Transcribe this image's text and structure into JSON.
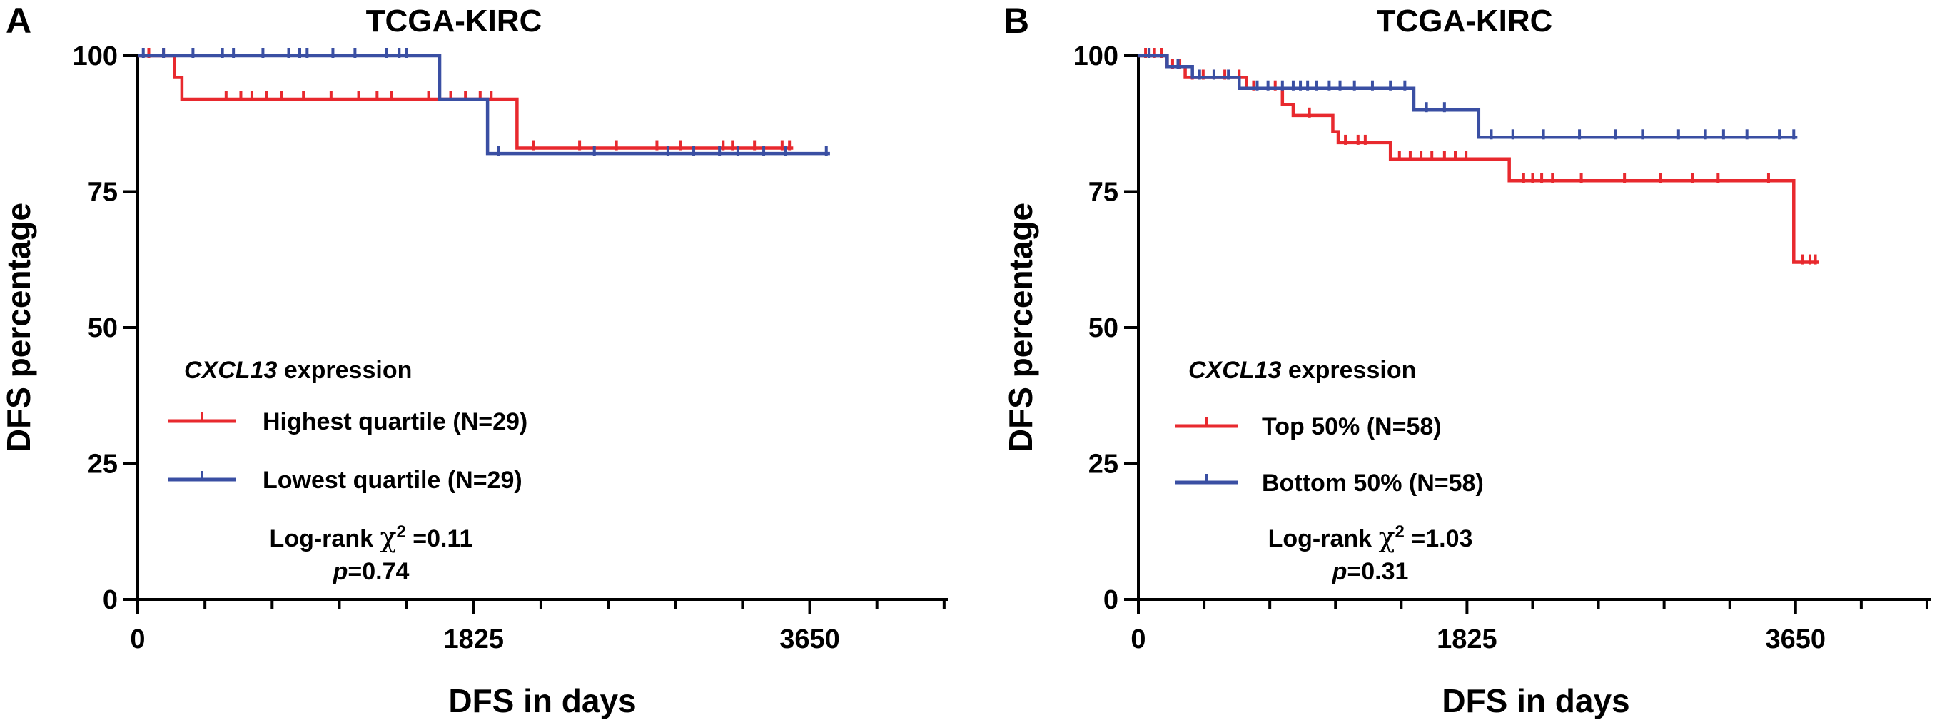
{
  "chart_data": [
    {
      "type": "line",
      "panel_label": "A",
      "title": "TCGA-KIRC",
      "xlabel": "DFS in days",
      "ylabel": "DFS percentage",
      "xlim": [
        0,
        4400
      ],
      "ylim": [
        0,
        100
      ],
      "x_ticks": [
        0,
        1825,
        3650
      ],
      "y_ticks": [
        0,
        25,
        50,
        75,
        100
      ],
      "legend_title_italic": "CXCL13",
      "legend_title_rest": " expression",
      "legend_placement": "center-left",
      "annotation": {
        "prefix": "Log-rank ",
        "chi": "χ",
        "sup": "2",
        "value": " =0.11",
        "p_label": "p",
        "p_value": "=0.74"
      },
      "series": [
        {
          "name": "Highest quartile (N=29)",
          "color": "#e8292e",
          "steps": [
            [
              0,
              100
            ],
            [
              200,
              96
            ],
            [
              240,
              92
            ],
            [
              2060,
              83
            ]
          ],
          "end_x": 3560,
          "censor_x": [
            60,
            140,
            480,
            560,
            620,
            700,
            780,
            900,
            1050,
            1200,
            1300,
            1380,
            1580,
            1700,
            1780,
            1860,
            1920,
            2150,
            2400,
            2600,
            2820,
            2950,
            3180,
            3230,
            3350,
            3500,
            3540
          ]
        },
        {
          "name": "Lowest quartile (N=29)",
          "color": "#3a4fa3",
          "steps": [
            [
              0,
              100
            ],
            [
              1640,
              92
            ],
            [
              1900,
              82
            ]
          ],
          "end_x": 3760,
          "censor_x": [
            30,
            140,
            300,
            460,
            520,
            680,
            820,
            880,
            920,
            1060,
            1180,
            1350,
            1420,
            1460,
            1960,
            2480,
            2880,
            3020,
            3160,
            3260,
            3400,
            3520,
            3740
          ]
        }
      ]
    },
    {
      "type": "line",
      "panel_label": "B",
      "title": "TCGA-KIRC",
      "xlabel": "DFS in days",
      "ylabel": "DFS percentage",
      "xlim": [
        0,
        4400
      ],
      "ylim": [
        0,
        100
      ],
      "x_ticks": [
        0,
        1825,
        3650
      ],
      "y_ticks": [
        0,
        25,
        50,
        75,
        100
      ],
      "legend_title_italic": "CXCL13",
      "legend_title_rest": " expression",
      "legend_placement": "center-left",
      "annotation": {
        "prefix": "Log-rank ",
        "chi": "χ",
        "sup": "2",
        "value": " =1.03",
        "p_label": "p",
        "p_value": "=0.31"
      },
      "series": [
        {
          "name": "Top 50% (N=58)",
          "color": "#e8292e",
          "steps": [
            [
              0,
              100
            ],
            [
              160,
              98
            ],
            [
              260,
              96
            ],
            [
              600,
              94
            ],
            [
              800,
              91
            ],
            [
              860,
              89
            ],
            [
              1080,
              86
            ],
            [
              1110,
              84
            ],
            [
              1400,
              81
            ],
            [
              2060,
              77
            ],
            [
              3640,
              62
            ]
          ],
          "end_x": 3780,
          "censor_x": [
            40,
            90,
            130,
            190,
            230,
            300,
            360,
            420,
            480,
            560,
            640,
            760,
            950,
            1150,
            1220,
            1260,
            1450,
            1510,
            1570,
            1630,
            1700,
            1760,
            1820,
            2140,
            2190,
            2240,
            2300,
            2460,
            2700,
            2900,
            3080,
            3220,
            3500,
            3690,
            3730,
            3760
          ]
        },
        {
          "name": "Bottom 50% (N=58)",
          "color": "#3a4fa3",
          "steps": [
            [
              0,
              100
            ],
            [
              160,
              98
            ],
            [
              300,
              96
            ],
            [
              560,
              94
            ],
            [
              1530,
              90
            ],
            [
              1890,
              85
            ]
          ],
          "end_x": 3660,
          "censor_x": [
            60,
            220,
            340,
            420,
            500,
            660,
            720,
            800,
            860,
            900,
            940,
            990,
            1060,
            1120,
            1200,
            1300,
            1400,
            1480,
            1600,
            1700,
            1960,
            2080,
            2250,
            2450,
            2650,
            2800,
            3000,
            3150,
            3250,
            3380,
            3560,
            3640
          ]
        }
      ]
    }
  ]
}
